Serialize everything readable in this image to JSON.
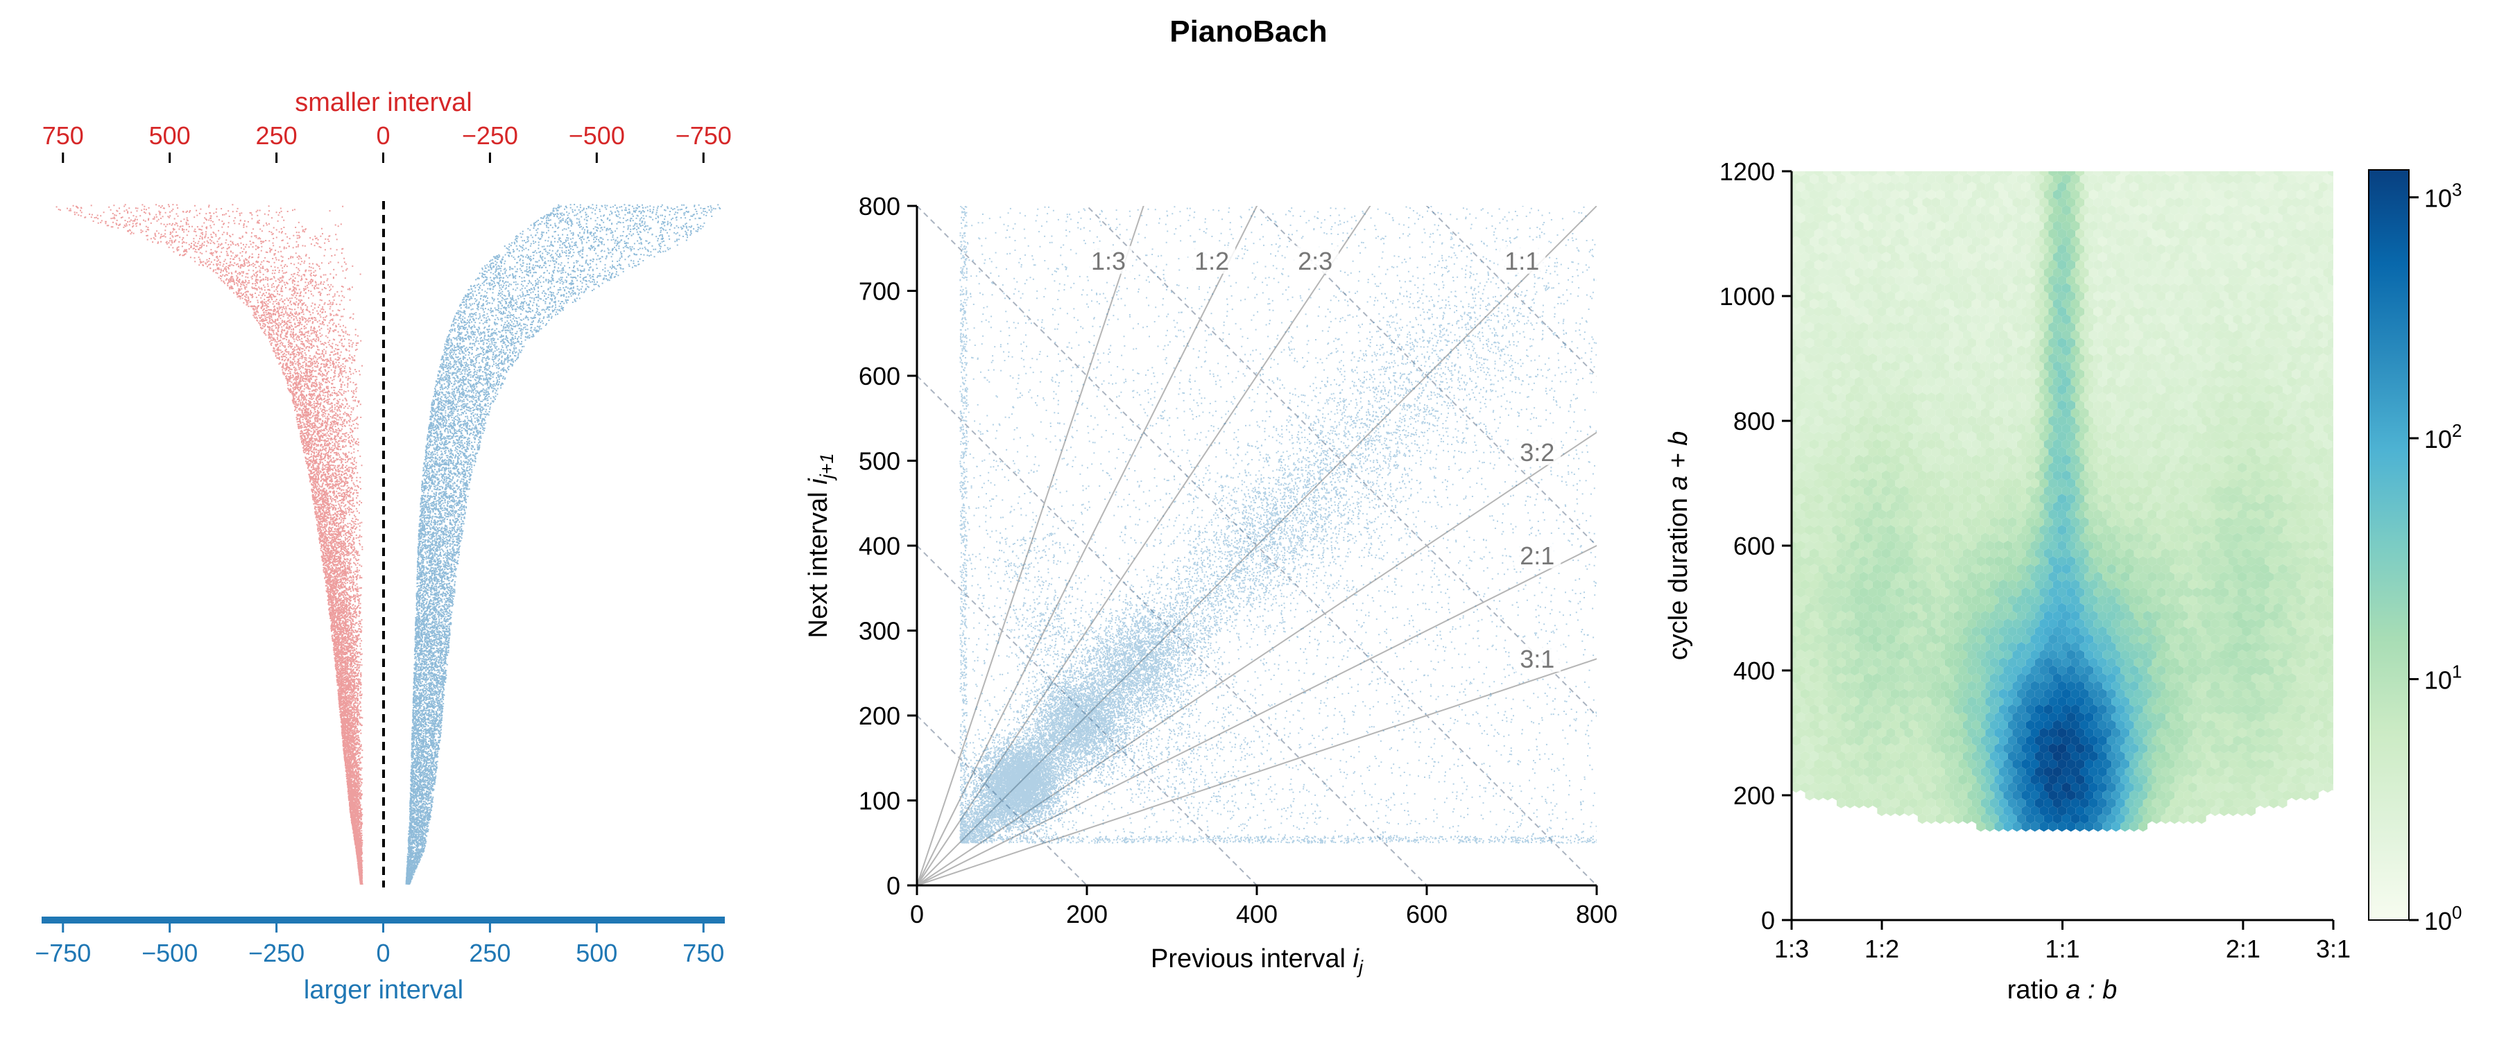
{
  "figure": {
    "title": "PianoBach"
  },
  "colors": {
    "red": "#d62728",
    "blue": "#1f77b4",
    "guide_gray": "#999999",
    "ratio_label_gray": "#777777",
    "colormap": "GnBu"
  },
  "chart_data": [
    {
      "type": "scatter",
      "panel": "asymmetry",
      "top_axis": {
        "label": "smaller interval",
        "tick_values": [
          750,
          500,
          250,
          0,
          -250,
          -500,
          -750
        ],
        "tick_labels": [
          "750",
          "500",
          "250",
          "0",
          "−250",
          "−500",
          "−750"
        ],
        "color": "#d62728"
      },
      "bottom_axis": {
        "label": "larger interval",
        "tick_values": [
          -750,
          -500,
          -250,
          0,
          250,
          500,
          750
        ],
        "tick_labels": [
          "−750",
          "−500",
          "−250",
          "0",
          "250",
          "500",
          "750"
        ],
        "color": "#1f77b4"
      },
      "xlim": [
        -800,
        800
      ],
      "series": [
        {
          "side": "smaller",
          "color": "#d62728",
          "note": "inner edge fixed at -50; outer edge as a function of rank (0 = top of panel, 1 = bottom)",
          "edge_rank": [
            0.0,
            0.05,
            0.1,
            0.15,
            0.2,
            0.25,
            0.3,
            0.4,
            0.5,
            0.6,
            0.7,
            0.8,
            0.9,
            0.95,
            1.0
          ],
          "edge_value": [
            -800,
            -560,
            -400,
            -320,
            -270,
            -235,
            -210,
            -175,
            -150,
            -128,
            -110,
            -95,
            -78,
            -65,
            -55
          ]
        },
        {
          "side": "larger",
          "color": "#1f77b4",
          "edge_rank": [
            0.0,
            0.05,
            0.1,
            0.15,
            0.2,
            0.25,
            0.3,
            0.4,
            0.5,
            0.6,
            0.7,
            0.8,
            0.9,
            0.95,
            1.0
          ],
          "inner_value": [
            410,
            300,
            220,
            175,
            145,
            125,
            110,
            90,
            80,
            75,
            70,
            65,
            60,
            56,
            52
          ],
          "outer_value": [
            800,
            720,
            560,
            430,
            340,
            290,
            250,
            205,
            180,
            160,
            145,
            130,
            110,
            95,
            60
          ]
        }
      ],
      "reference_line": {
        "value": 0,
        "style": "dashed",
        "color": "#000000"
      }
    },
    {
      "type": "scatter",
      "panel": "return map",
      "xlabel": "Previous interval",
      "xlabel_math": "i",
      "xlabel_sub": "j",
      "ylabel": "Next interval",
      "ylabel_math": "i",
      "ylabel_sub": "j+1",
      "xlim": [
        0,
        800
      ],
      "ylim": [
        0,
        800
      ],
      "xticks": [
        0,
        200,
        400,
        600,
        800
      ],
      "yticks": [
        0,
        100,
        200,
        300,
        400,
        500,
        600,
        700,
        800
      ],
      "color": "#1f77b4",
      "data_floor": 50,
      "clusters": [
        {
          "x": 120,
          "y": 120,
          "n": 6000
        },
        {
          "x": 190,
          "y": 190,
          "n": 3500
        },
        {
          "x": 260,
          "y": 260,
          "n": 2200
        },
        {
          "x": 410,
          "y": 410,
          "n": 700
        },
        {
          "x": 480,
          "y": 480,
          "n": 250
        },
        {
          "x": 150,
          "y": 300,
          "n": 300
        },
        {
          "x": 300,
          "y": 150,
          "n": 300
        },
        {
          "x": 130,
          "y": 390,
          "n": 150
        },
        {
          "x": 390,
          "y": 130,
          "n": 150
        }
      ],
      "ratio_guides": [
        {
          "label": "1:3",
          "ratio": 3.0
        },
        {
          "label": "1:2",
          "ratio": 2.0
        },
        {
          "label": "2:3",
          "ratio": 1.5
        },
        {
          "label": "1:1",
          "ratio": 1.0
        },
        {
          "label": "3:2",
          "ratio": 0.6667
        },
        {
          "label": "2:1",
          "ratio": 0.5
        },
        {
          "label": "3:1",
          "ratio": 0.3333
        }
      ],
      "sum_guides": [
        200,
        400,
        600,
        800,
        1000,
        1200,
        1400
      ]
    },
    {
      "type": "heatmap",
      "panel": "hexbin",
      "xlabel": "ratio",
      "xlabel_math": "a : b",
      "ylabel": "cycle duration",
      "ylabel_math": "a + b",
      "xtick_labels": [
        "1:3",
        "1:2",
        "1:1",
        "2:1",
        "3:1"
      ],
      "xtick_positions": [
        0.25,
        0.3333,
        0.5,
        0.6667,
        0.75
      ],
      "xlim": [
        0.25,
        0.75
      ],
      "ylim": [
        0,
        1200
      ],
      "yticks": [
        0,
        200,
        400,
        600,
        800,
        1000,
        1200
      ],
      "colorbar": {
        "scale": "log",
        "range": [
          1,
          1300
        ],
        "tick_values": [
          1,
          10,
          100,
          1000
        ],
        "tick_base": "10",
        "tick_exponents": [
          "0",
          "1",
          "2",
          "3"
        ],
        "colormap": "GnBu"
      },
      "peak": {
        "ratio": 0.5,
        "duration": 250,
        "count": 1300
      }
    }
  ]
}
